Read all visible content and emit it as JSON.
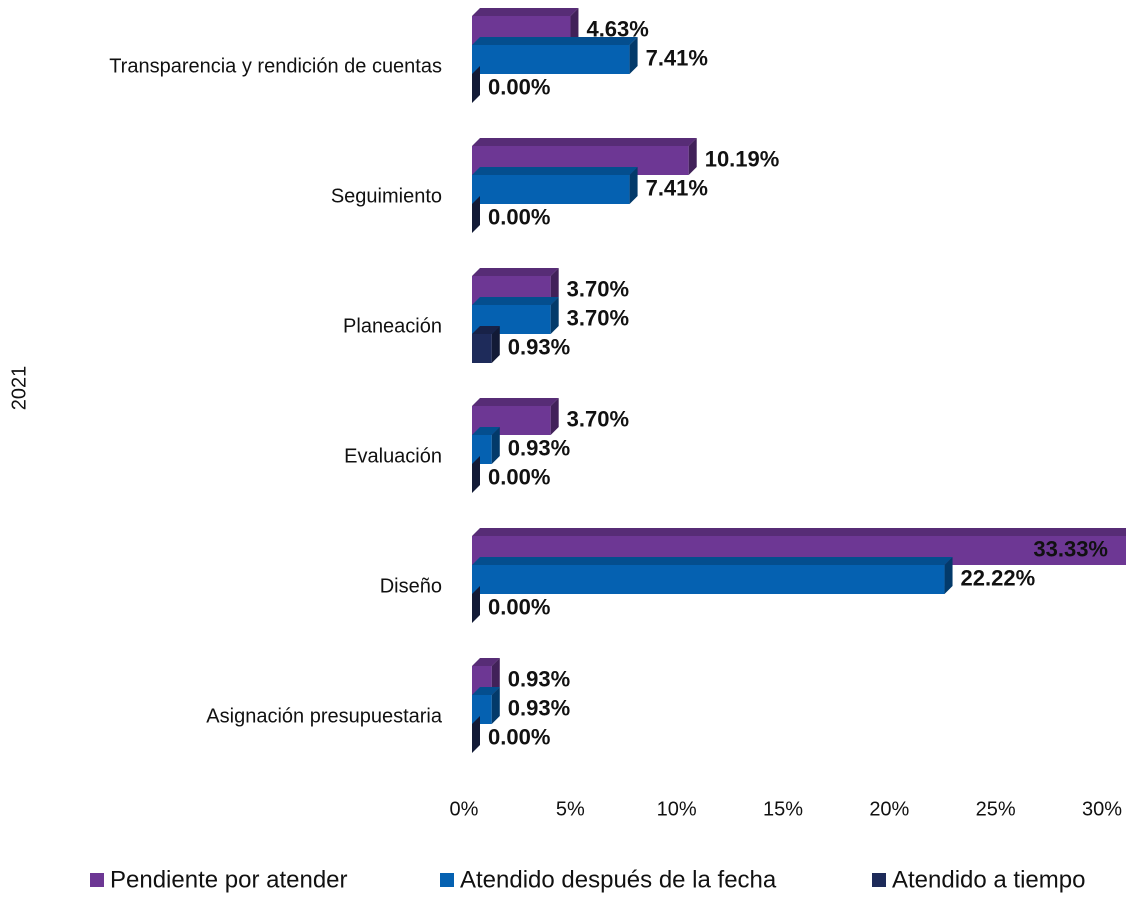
{
  "chart_data": {
    "type": "bar",
    "orientation": "horizontal",
    "3d": true,
    "ylabel": "2021",
    "categories": [
      "Transparencia y rendición de cuentas",
      "Seguimiento",
      "Planeación",
      "Evaluación",
      "Diseño",
      "Asignación presupuestaria"
    ],
    "series": [
      {
        "name": "Pendiente por atender",
        "color": "#6d3794",
        "values": [
          4.63,
          10.19,
          3.7,
          3.7,
          33.33,
          0.93
        ],
        "value_labels": [
          "4.63%",
          "10.19%",
          "3.70%",
          "3.70%",
          "33.33%",
          "0.93%"
        ]
      },
      {
        "name": "Atendido después de la fecha",
        "color": "#0561b1",
        "values": [
          7.41,
          7.41,
          3.7,
          0.93,
          22.22,
          0.93
        ],
        "value_labels": [
          "7.41%",
          "7.41%",
          "3.70%",
          "0.93%",
          "22.22%",
          "0.93%"
        ]
      },
      {
        "name": "Atendido a tiempo",
        "color": "#1e2b5a",
        "values": [
          0,
          0,
          0.93,
          0,
          0,
          0
        ],
        "value_labels": [
          "0.00%",
          "0.00%",
          "0.93%",
          "0.00%",
          "0.00%",
          "0.00%"
        ]
      }
    ],
    "xlim": [
      0,
      30
    ],
    "xticks": [
      {
        "value": 0,
        "label": "0%"
      },
      {
        "value": 5,
        "label": "5%"
      },
      {
        "value": 10,
        "label": "10%"
      },
      {
        "value": 15,
        "label": "15%"
      },
      {
        "value": 20,
        "label": "20%"
      },
      {
        "value": 25,
        "label": "25%"
      },
      {
        "value": 30,
        "label": "30%"
      }
    ],
    "legend": "bottom"
  }
}
